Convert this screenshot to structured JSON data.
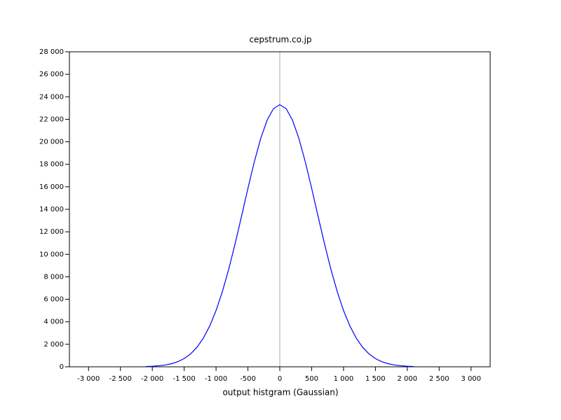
{
  "chart_data": {
    "type": "line",
    "title": "cepstrum.co.jp",
    "xlabel": "output histgram (Gaussian)",
    "x": [
      -2100,
      -2000,
      -1900,
      -1800,
      -1700,
      -1600,
      -1500,
      -1400,
      -1300,
      -1200,
      -1100,
      -1000,
      -900,
      -800,
      -700,
      -600,
      -500,
      -400,
      -300,
      -200,
      -100,
      0,
      100,
      200,
      300,
      400,
      500,
      600,
      700,
      800,
      900,
      1000,
      1100,
      1200,
      1300,
      1400,
      1500,
      1600,
      1700,
      1800,
      1900,
      2000,
      2100
    ],
    "values": [
      26,
      49,
      90,
      159,
      273,
      453,
      730,
      1141,
      1729,
      2540,
      3619,
      5000,
      6699,
      8701,
      10962,
      13389,
      15859,
      18215,
      20286,
      21909,
      22944,
      23300,
      22944,
      21909,
      20286,
      18215,
      15859,
      13389,
      10962,
      8701,
      6699,
      5000,
      3619,
      2540,
      1729,
      1141,
      730,
      453,
      273,
      159,
      90,
      49,
      26
    ],
    "color": "#0000ff",
    "xlim": [
      -3300,
      3300
    ],
    "ylim": [
      0,
      28000
    ],
    "xticks": [
      {
        "value": -3000,
        "label": "-3 000"
      },
      {
        "value": -2500,
        "label": "-2 500"
      },
      {
        "value": -2000,
        "label": "-2 000"
      },
      {
        "value": -1500,
        "label": "-1 500"
      },
      {
        "value": -1000,
        "label": "-1 000"
      },
      -500,
      0,
      500,
      {
        "value": 1000,
        "label": "1 000"
      },
      {
        "value": 1500,
        "label": "1 500"
      },
      {
        "value": 2000,
        "label": "2 000"
      },
      {
        "value": 2500,
        "label": "2 500"
      },
      {
        "value": 3000,
        "label": "3 000"
      }
    ],
    "yticks": [
      0,
      {
        "value": 2000,
        "label": "2 000"
      },
      {
        "value": 4000,
        "label": "4 000"
      },
      {
        "value": 6000,
        "label": "6 000"
      },
      {
        "value": 8000,
        "label": "8 000"
      },
      {
        "value": 10000,
        "label": "10 000"
      },
      {
        "value": 12000,
        "label": "12 000"
      },
      {
        "value": 14000,
        "label": "14 000"
      },
      {
        "value": 16000,
        "label": "16 000"
      },
      {
        "value": 18000,
        "label": "18 000"
      },
      {
        "value": 20000,
        "label": "20 000"
      },
      {
        "value": 22000,
        "label": "22 000"
      },
      {
        "value": 24000,
        "label": "24 000"
      },
      {
        "value": 26000,
        "label": "26 000"
      },
      {
        "value": 28000,
        "label": "28 000"
      }
    ]
  }
}
